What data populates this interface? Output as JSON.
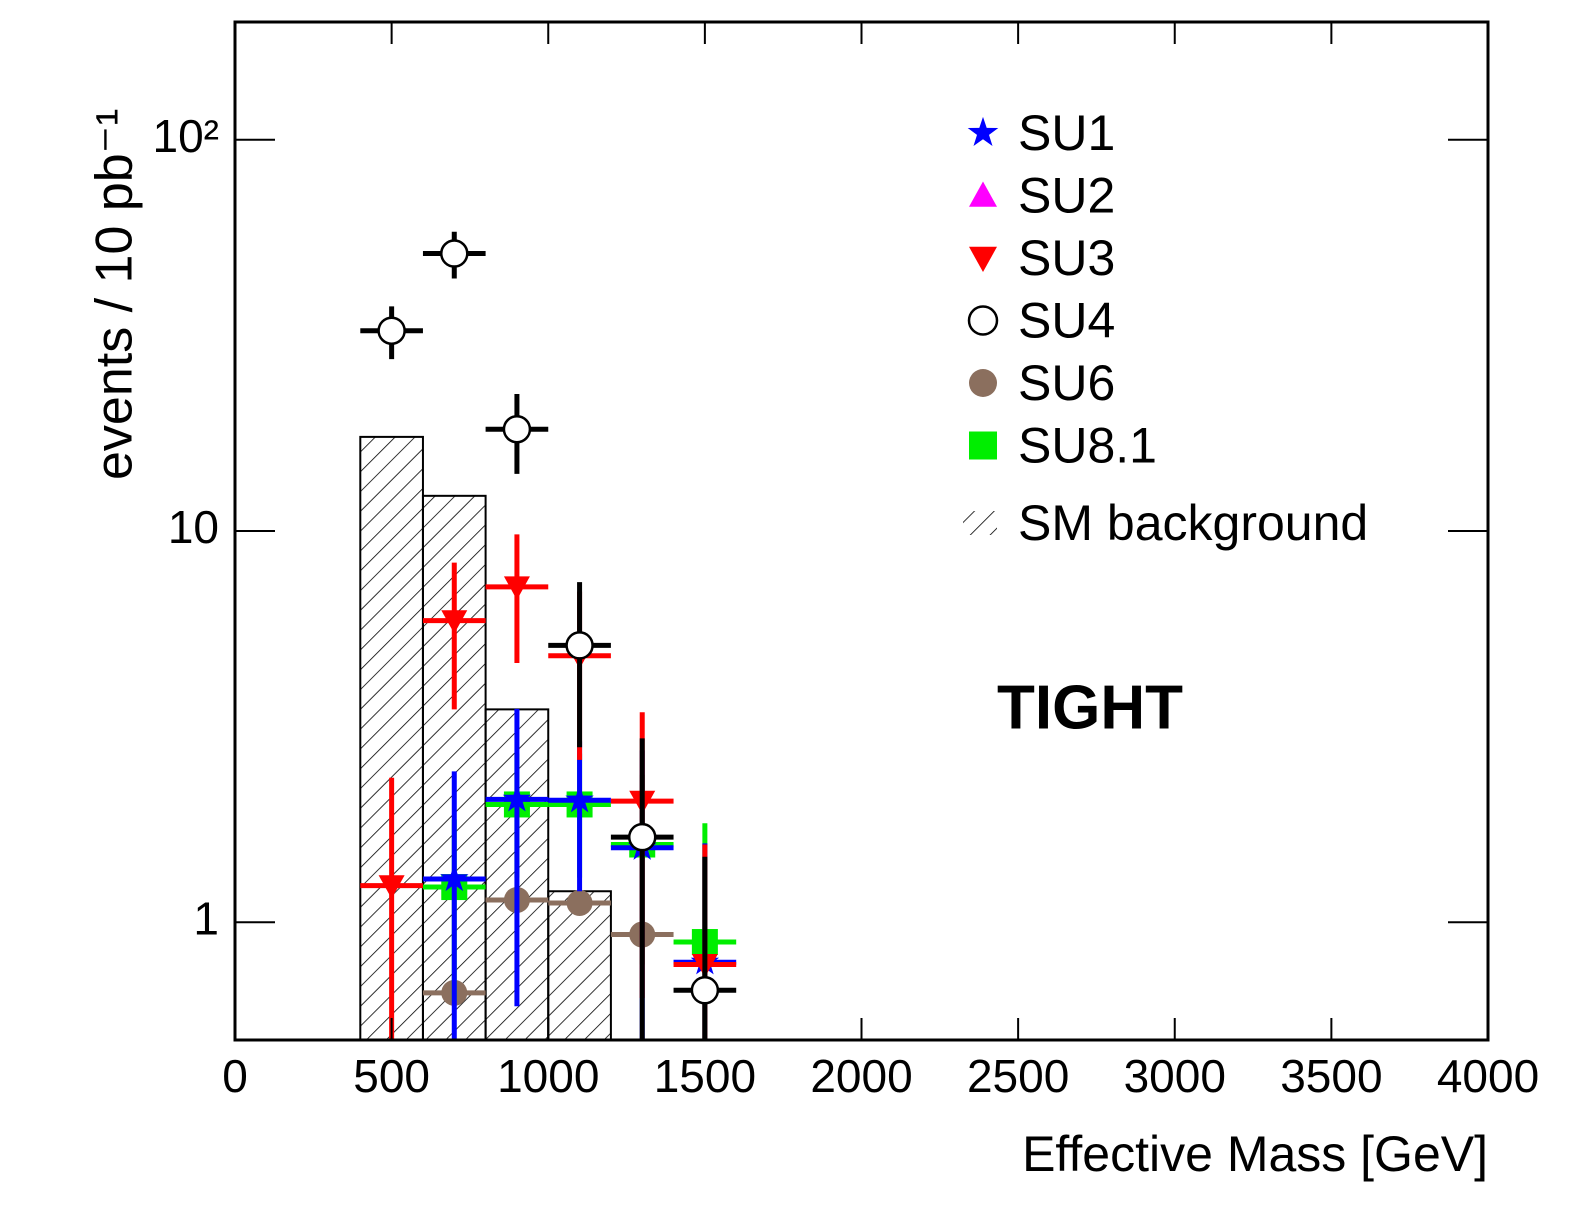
{
  "chart_data": {
    "type": "scatter",
    "x_label": "Effective Mass [GeV]",
    "y_label": "events / 10 pb⁻¹",
    "annotation": "TIGHT",
    "log_y": true,
    "grid": false,
    "legend": "upper right",
    "xlim": [
      0,
      4000
    ],
    "ylim": [
      0.5,
      200
    ],
    "xticks": [
      0,
      500,
      1000,
      1500,
      2000,
      2500,
      3000,
      3500,
      4000
    ],
    "yticks": [
      1,
      10,
      {
        "value": 100,
        "label": "10²"
      }
    ],
    "x": [
      500,
      700,
      900,
      1100,
      1300,
      1500
    ],
    "xerr": 100,
    "series": [
      {
        "name": "SU1",
        "marker": "star",
        "color": "#0000ff",
        "values": [
          null,
          1.29,
          2.06,
          2.05,
          1.55,
          0.79
        ],
        "errors": [
          null,
          1.14,
          1.45,
          0.85,
          1.2,
          0.8
        ]
      },
      {
        "name": "SU2",
        "marker": "triangle-up",
        "color": "#ff00ff",
        "values": [
          null,
          null,
          null,
          null,
          null,
          null
        ],
        "errors": [
          null,
          null,
          null,
          null,
          null,
          null
        ]
      },
      {
        "name": "SU3",
        "marker": "triangle-down",
        "color": "#ff0000",
        "values": [
          1.24,
          5.9,
          7.2,
          4.8,
          2.04,
          0.78
        ],
        "errors": [
          1.1,
          2.4,
          2.6,
          2.2,
          1.4,
          0.8
        ]
      },
      {
        "name": "SU4",
        "marker": "open-circle",
        "color": "#000000",
        "values": [
          32.5,
          51.2,
          18.2,
          5.1,
          1.65,
          0.67
        ],
        "errors": [
          5,
          7,
          4.2,
          2.3,
          1.3,
          0.8
        ]
      },
      {
        "name": "SU6",
        "marker": "circle",
        "color": "#8b6f5e",
        "values": [
          null,
          0.66,
          1.14,
          1.12,
          0.93,
          null
        ],
        "errors": [
          null,
          null,
          null,
          null,
          null,
          null
        ]
      },
      {
        "name": "SU8.1",
        "marker": "square",
        "color": "#00ee00",
        "values": [
          null,
          1.23,
          2.0,
          2.0,
          1.58,
          0.89
        ],
        "errors": [
          null,
          0.6,
          0.7,
          0.7,
          0.8,
          0.9
        ]
      }
    ],
    "background": {
      "name": "SM background",
      "bins": [
        400,
        600,
        800,
        1000,
        1200
      ],
      "values": [
        17.4,
        12.3,
        3.5,
        1.2
      ]
    }
  }
}
